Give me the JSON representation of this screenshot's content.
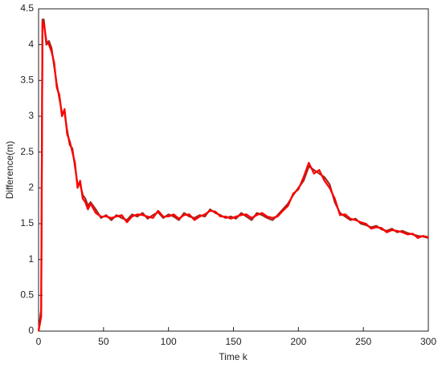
{
  "chart_data": {
    "type": "line",
    "x_label": "Time k",
    "y_label": "Difference(m)",
    "x": [
      0,
      2,
      3,
      4,
      6,
      8,
      10,
      12,
      14,
      16,
      18,
      20,
      22,
      24,
      26,
      28,
      30,
      32,
      34,
      36,
      38,
      40,
      44,
      48,
      52,
      56,
      60,
      64,
      68,
      72,
      76,
      80,
      84,
      88,
      92,
      96,
      100,
      104,
      108,
      112,
      116,
      120,
      124,
      128,
      132,
      136,
      140,
      144,
      148,
      152,
      156,
      160,
      164,
      168,
      172,
      176,
      180,
      184,
      188,
      192,
      196,
      200,
      204,
      208,
      212,
      216,
      220,
      224,
      228,
      232,
      236,
      240,
      244,
      248,
      252,
      256,
      260,
      264,
      268,
      272,
      276,
      280,
      284,
      288,
      292,
      296,
      300
    ],
    "series": [
      {
        "color": "#a0281e",
        "values": [
          0,
          0.3,
          4.35,
          4.35,
          4.0,
          4.05,
          3.95,
          3.7,
          3.45,
          3.25,
          3.05,
          3.05,
          2.8,
          2.6,
          2.55,
          2.3,
          2.05,
          2.05,
          1.9,
          1.85,
          1.75,
          1.8,
          1.7,
          1.58,
          1.62,
          1.55,
          1.62,
          1.58,
          1.55,
          1.63,
          1.6,
          1.65,
          1.57,
          1.62,
          1.66,
          1.58,
          1.63,
          1.6,
          1.55,
          1.65,
          1.6,
          1.58,
          1.62,
          1.6,
          1.7,
          1.65,
          1.62,
          1.58,
          1.6,
          1.57,
          1.65,
          1.6,
          1.55,
          1.65,
          1.62,
          1.58,
          1.55,
          1.62,
          1.7,
          1.78,
          1.9,
          2.0,
          2.1,
          2.3,
          2.25,
          2.2,
          2.15,
          2.05,
          1.8,
          1.65,
          1.6,
          1.55,
          1.57,
          1.5,
          1.48,
          1.45,
          1.47,
          1.42,
          1.4,
          1.43,
          1.38,
          1.4,
          1.37,
          1.35,
          1.33,
          1.32,
          1.3
        ]
      },
      {
        "color": "#ff0000",
        "values": [
          0,
          0.2,
          4.3,
          4.3,
          4.05,
          4.0,
          3.9,
          3.75,
          3.4,
          3.3,
          3.0,
          3.1,
          2.75,
          2.65,
          2.5,
          2.35,
          2.0,
          2.1,
          1.85,
          1.8,
          1.7,
          1.78,
          1.65,
          1.6,
          1.6,
          1.58,
          1.6,
          1.62,
          1.52,
          1.6,
          1.63,
          1.62,
          1.6,
          1.58,
          1.68,
          1.6,
          1.6,
          1.63,
          1.57,
          1.62,
          1.63,
          1.55,
          1.6,
          1.63,
          1.68,
          1.67,
          1.6,
          1.6,
          1.57,
          1.6,
          1.62,
          1.63,
          1.58,
          1.62,
          1.65,
          1.6,
          1.58,
          1.6,
          1.68,
          1.75,
          1.92,
          1.98,
          2.15,
          2.35,
          2.2,
          2.25,
          2.1,
          2.0,
          1.85,
          1.62,
          1.63,
          1.57,
          1.55,
          1.52,
          1.5,
          1.43,
          1.45,
          1.44,
          1.38,
          1.41,
          1.4,
          1.38,
          1.35,
          1.36,
          1.3,
          1.33,
          1.31
        ]
      }
    ],
    "xlim": [
      0,
      300
    ],
    "xticks": [
      0,
      50,
      100,
      150,
      200,
      250,
      300
    ],
    "ylim": [
      0,
      4.5
    ],
    "yticks": [
      0,
      0.5,
      1,
      1.5,
      2,
      2.5,
      3,
      3.5,
      4,
      4.5
    ],
    "grid": false
  }
}
